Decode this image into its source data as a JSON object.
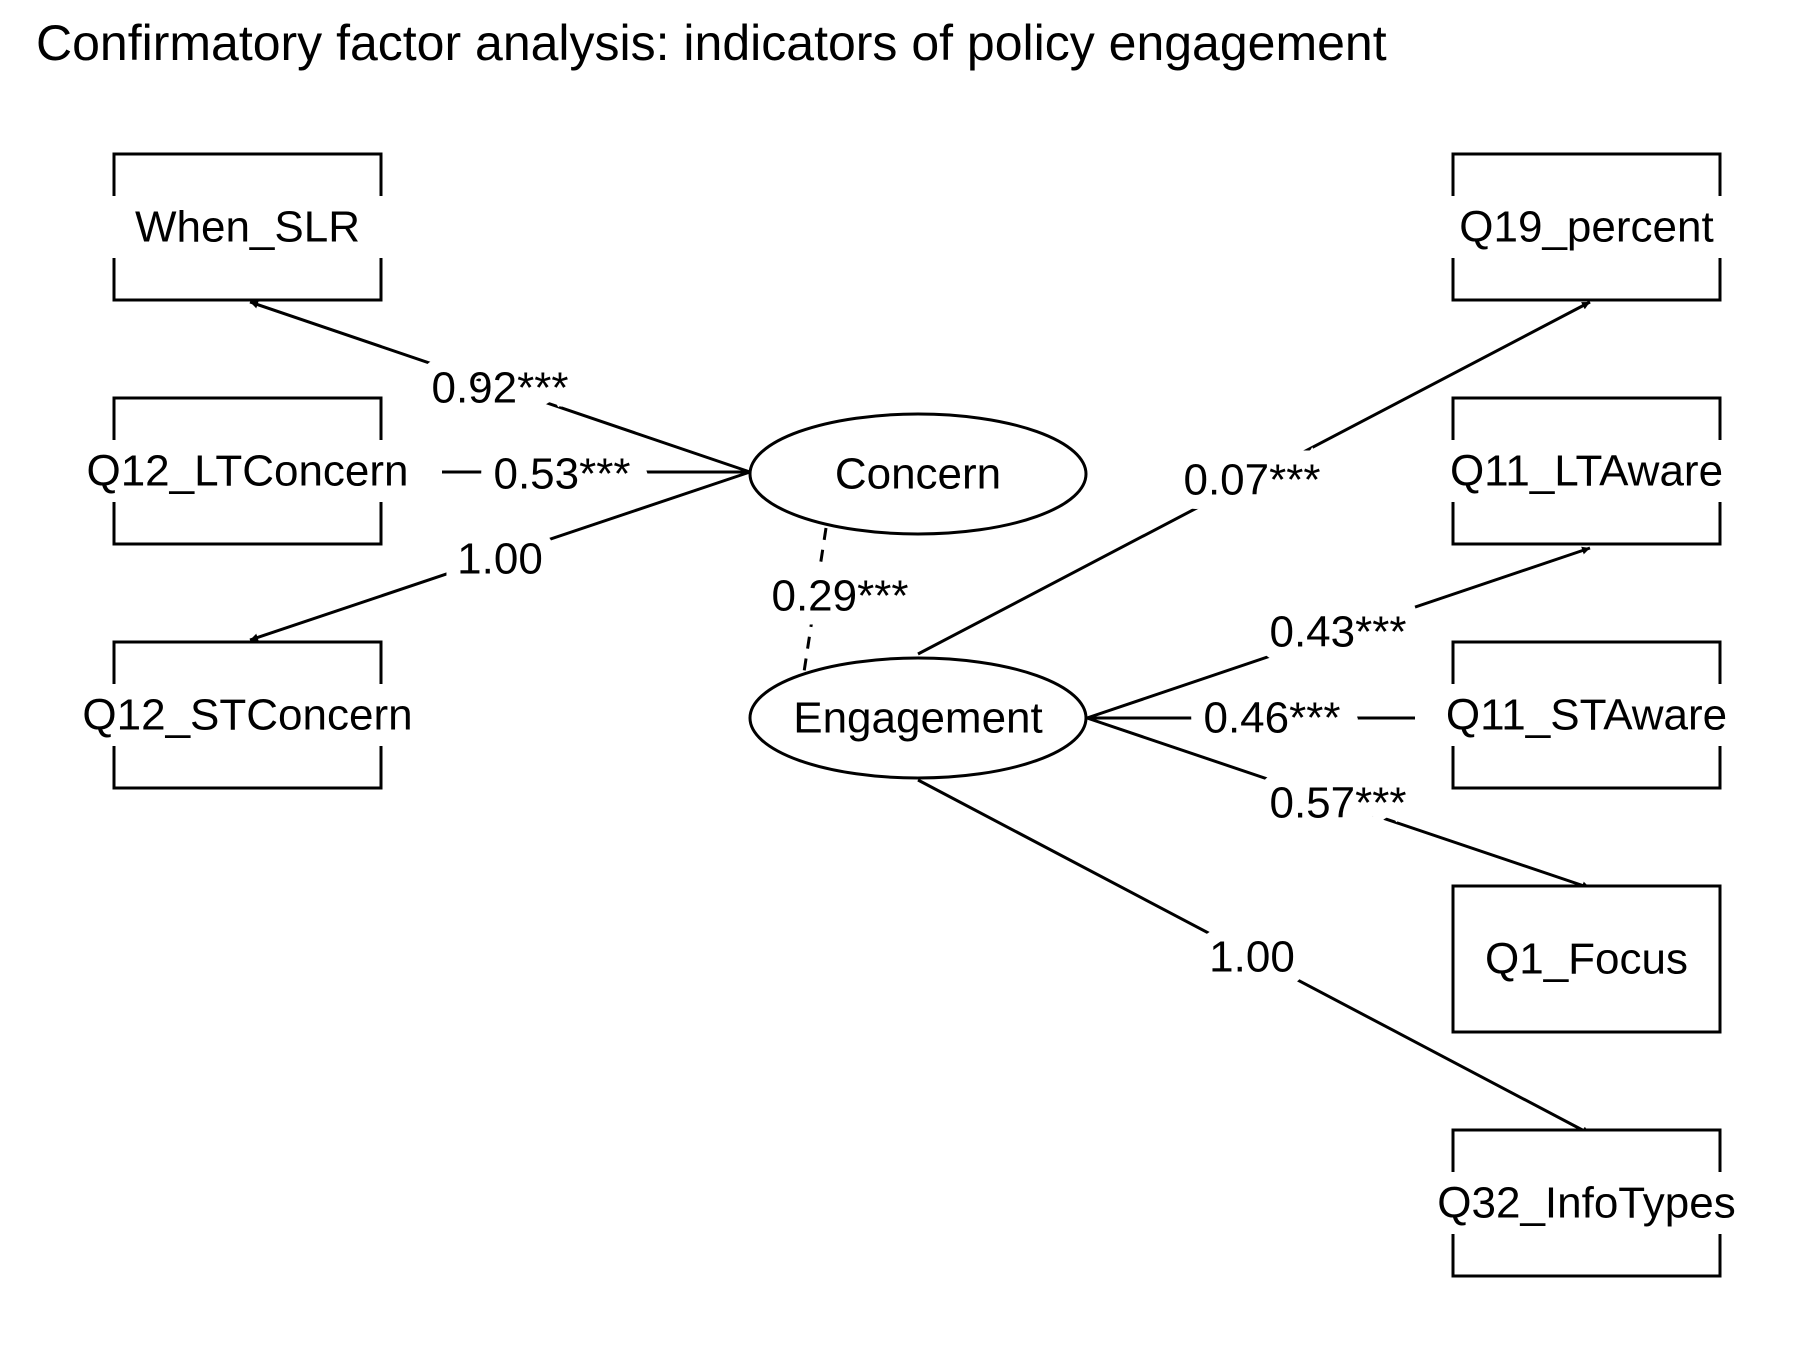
{
  "title": "Confirmatory factor analysis: indicators of policy engagement",
  "colors": {
    "stroke": "#000000",
    "background": "#ffffff"
  },
  "latents": [
    {
      "id": "concern",
      "label": "Concern"
    },
    {
      "id": "engagement",
      "label": "Engagement"
    }
  ],
  "indicators": [
    {
      "id": "when_slr",
      "label": "When_SLR",
      "factor": "concern",
      "loading": "0.92***",
      "box": "open"
    },
    {
      "id": "q12_lt",
      "label": "Q12_LTConcern",
      "factor": "concern",
      "loading": "0.53***",
      "box": "open"
    },
    {
      "id": "q12_st",
      "label": "Q12_STConcern",
      "factor": "concern",
      "loading": "1.00",
      "box": "open"
    },
    {
      "id": "q19",
      "label": "Q19_percent",
      "factor": "engagement",
      "loading": "0.07***",
      "box": "open"
    },
    {
      "id": "q11_lt",
      "label": "Q11_LTAware",
      "factor": "engagement",
      "loading": "0.43***",
      "box": "open"
    },
    {
      "id": "q11_st",
      "label": "Q11_STAware",
      "factor": "engagement",
      "loading": "0.46***",
      "box": "open"
    },
    {
      "id": "q1",
      "label": "Q1_Focus",
      "factor": "engagement",
      "loading": "0.57***",
      "box": "closed"
    },
    {
      "id": "q32",
      "label": "Q32_InfoTypes",
      "factor": "engagement",
      "loading": "1.00",
      "box": "open"
    }
  ],
  "covariance": {
    "from": "concern",
    "to": "engagement",
    "value": "0.29***"
  }
}
